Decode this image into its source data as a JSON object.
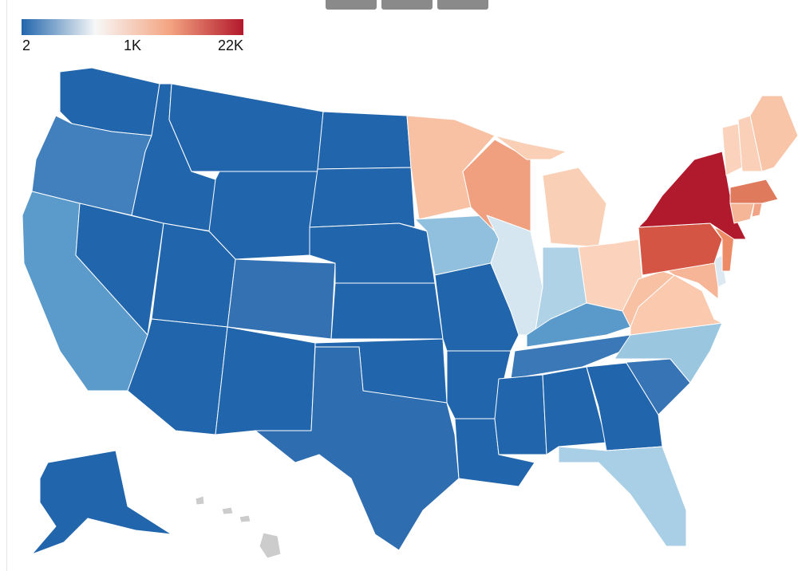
{
  "legend": {
    "scale": "diverging-log",
    "colors": [
      "#2166ac",
      "#f7f7f7",
      "#f4a582",
      "#b2182b"
    ],
    "ticks": [
      2,
      {
        "value": 1000,
        "label": "1K"
      },
      {
        "value": 22000,
        "label": "22K"
      }
    ]
  },
  "map": {
    "region_colors": [
      "#2166ac",
      "#4180bd",
      "#5b9bcb",
      "#2166ac",
      "#2166ac",
      "#2166ac",
      "#2166ac",
      "#2166ac",
      "#2166ac",
      "#3371b3",
      "#2166ac",
      "#2166ac",
      "#2166ac",
      "#2166ac",
      "#2166ac",
      "#2166ac",
      "#2f6db1",
      "#f8c1a3",
      "#90c0de",
      "#2166ac",
      "#2166ac",
      "#2166ac",
      "#f0a07e",
      "#d6e6f1",
      "#f9d0b6",
      "#f9d0b6",
      "#afd2e7",
      "#fbd3bc",
      "#5a9acb",
      "#3a78b8",
      "#2166ac",
      "#2166ac",
      "#2166ac",
      "#a8cfe5",
      "#3774b5",
      "#9ac6e0",
      "#fbc9ae",
      "#f8c1a3",
      "#f6b596",
      "#dce9f2",
      "#d45543",
      "#ec8b66",
      "#b11a2c",
      "#fbd3bc",
      "#fad0b8",
      "#f8c5a8",
      "#e07a5d",
      "#f5b597",
      "#f3a385",
      "#2166ac"
    ],
    "missing_color": "#cccccc"
  }
}
